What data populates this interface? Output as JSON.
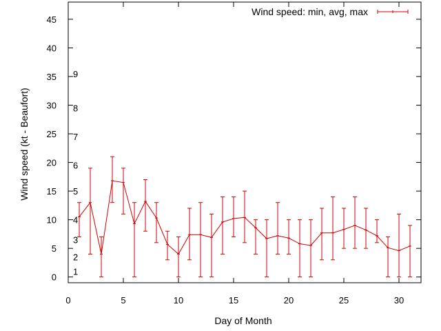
{
  "chart_data": {
    "type": "line",
    "title": "",
    "xlabel": "Day of Month",
    "ylabel": "Wind speed (kt - Beaufort)",
    "xlim": [
      0,
      32
    ],
    "ylim": [
      -1,
      48
    ],
    "xticks": [
      0,
      5,
      10,
      15,
      20,
      25,
      30
    ],
    "yticks": [
      0,
      5,
      10,
      15,
      20,
      25,
      30,
      35,
      40,
      45
    ],
    "grid": false,
    "legend_position": "top-right",
    "beaufort_labels": [
      {
        "label": "1",
        "value": 1
      },
      {
        "label": "2",
        "value": 3.5
      },
      {
        "label": "3",
        "value": 6.5
      },
      {
        "label": "4",
        "value": 10
      },
      {
        "label": "5",
        "value": 15
      },
      {
        "label": "6",
        "value": 19.5
      },
      {
        "label": "7",
        "value": 24.5
      },
      {
        "label": "8",
        "value": 29.5
      },
      {
        "label": "9",
        "value": 35.5
      }
    ],
    "series": [
      {
        "name": "Wind speed: min, avg, max",
        "color": "#cc0000",
        "x": [
          1,
          2,
          3,
          4,
          5,
          6,
          7,
          8,
          9,
          10,
          11,
          12,
          13,
          14,
          15,
          16,
          17,
          18,
          19,
          20,
          21,
          22,
          23,
          24,
          25,
          26,
          27,
          28,
          29,
          30,
          31
        ],
        "avg": [
          10.5,
          13,
          4,
          16.8,
          16.5,
          9.3,
          13.2,
          10.3,
          5.7,
          4,
          7.4,
          7.4,
          6.9,
          9.6,
          10.2,
          10.4,
          8.6,
          6.7,
          7.2,
          6.8,
          5.8,
          5.5,
          7.7,
          7.7,
          8.3,
          9,
          8.2,
          7.2,
          5.1,
          4.6,
          5.4
        ],
        "min": [
          7,
          4,
          0,
          13,
          11,
          0,
          8,
          6,
          3,
          0,
          3,
          0,
          0,
          4,
          7,
          6,
          4,
          0,
          4,
          4,
          0,
          0,
          3,
          3,
          5,
          5,
          5,
          6,
          0,
          0,
          0
        ],
        "max": [
          13,
          19,
          7,
          21,
          19,
          13,
          17,
          13,
          8,
          7,
          12,
          13,
          11,
          14,
          14,
          15,
          10,
          10,
          13,
          10,
          10,
          10,
          12,
          14,
          12,
          14,
          12,
          10,
          7,
          11,
          9
        ]
      }
    ]
  }
}
